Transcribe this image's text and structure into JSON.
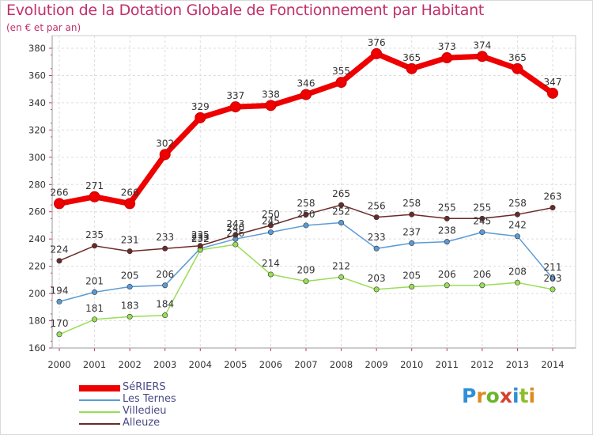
{
  "title": "Evolution de la Dotation Globale de Fonctionnement par Habitant",
  "subtitle": "(en € et par an)",
  "brand": {
    "text": "Proxiti",
    "letters": [
      "P",
      "r",
      "o",
      "x",
      "i",
      "t",
      "i"
    ],
    "letter_colors": [
      "#2e8fd6",
      "#e08a1e",
      "#6bb52b",
      "#d6402e",
      "#2e8fd6",
      "#8fbd2b",
      "#e08a1e"
    ]
  },
  "chart_data": {
    "type": "line",
    "title": "Evolution de la Dotation Globale de Fonctionnement par Habitant",
    "subtitle": "(en € et par an)",
    "xlabel": "",
    "ylabel": "",
    "x": [
      "2000",
      "2001",
      "2002",
      "2003",
      "2004",
      "2005",
      "2006",
      "2007",
      "2008",
      "2009",
      "2010",
      "2011",
      "2012",
      "2013",
      "2014"
    ],
    "ylim": [
      160,
      380
    ],
    "yticks": [
      160,
      180,
      200,
      220,
      240,
      260,
      280,
      300,
      320,
      340,
      360,
      380
    ],
    "grid": true,
    "legend_position": "bottom-left",
    "series": [
      {
        "name": "SéRIERS",
        "color": "#ee0000",
        "emphasis": "thick",
        "values": [
          266,
          271,
          266,
          302,
          329,
          337,
          338,
          346,
          355,
          376,
          365,
          373,
          374,
          365,
          347
        ],
        "labels": [
          "266",
          "271",
          "266",
          "302",
          "329",
          "337",
          "338",
          "346",
          "355",
          "376",
          "365",
          "373",
          "374",
          "365",
          "347"
        ]
      },
      {
        "name": "Les Ternes",
        "color": "#5b9bd5",
        "emphasis": "thin",
        "values": [
          194,
          201,
          205,
          206,
          233,
          240,
          245,
          250,
          252,
          233,
          237,
          238,
          245,
          242,
          211
        ],
        "labels": [
          "194",
          "201",
          "205",
          "206",
          "233",
          "240",
          "245",
          "250",
          "252",
          "233",
          "237",
          "238",
          "245",
          "242",
          "211"
        ]
      },
      {
        "name": "Villedieu",
        "color": "#99dd55",
        "emphasis": "thin",
        "values": [
          170,
          181,
          183,
          184,
          232,
          236,
          214,
          209,
          212,
          203,
          205,
          206,
          206,
          208,
          203
        ],
        "labels": [
          "170",
          "181",
          "183",
          "184",
          "232",
          "236",
          "214",
          "209",
          "212",
          "203",
          "205",
          "206",
          "206",
          "208",
          "203"
        ]
      },
      {
        "name": "Alleuze",
        "color": "#6b2a2a",
        "emphasis": "thin",
        "values": [
          224,
          235,
          231,
          233,
          235,
          243,
          250,
          258,
          265,
          256,
          258,
          255,
          255,
          258,
          263
        ],
        "labels": [
          "224",
          "235",
          "231",
          "233",
          "235",
          "243",
          "250",
          "258",
          "265",
          "256",
          "258",
          "255",
          "255",
          "258",
          "263"
        ]
      }
    ]
  }
}
